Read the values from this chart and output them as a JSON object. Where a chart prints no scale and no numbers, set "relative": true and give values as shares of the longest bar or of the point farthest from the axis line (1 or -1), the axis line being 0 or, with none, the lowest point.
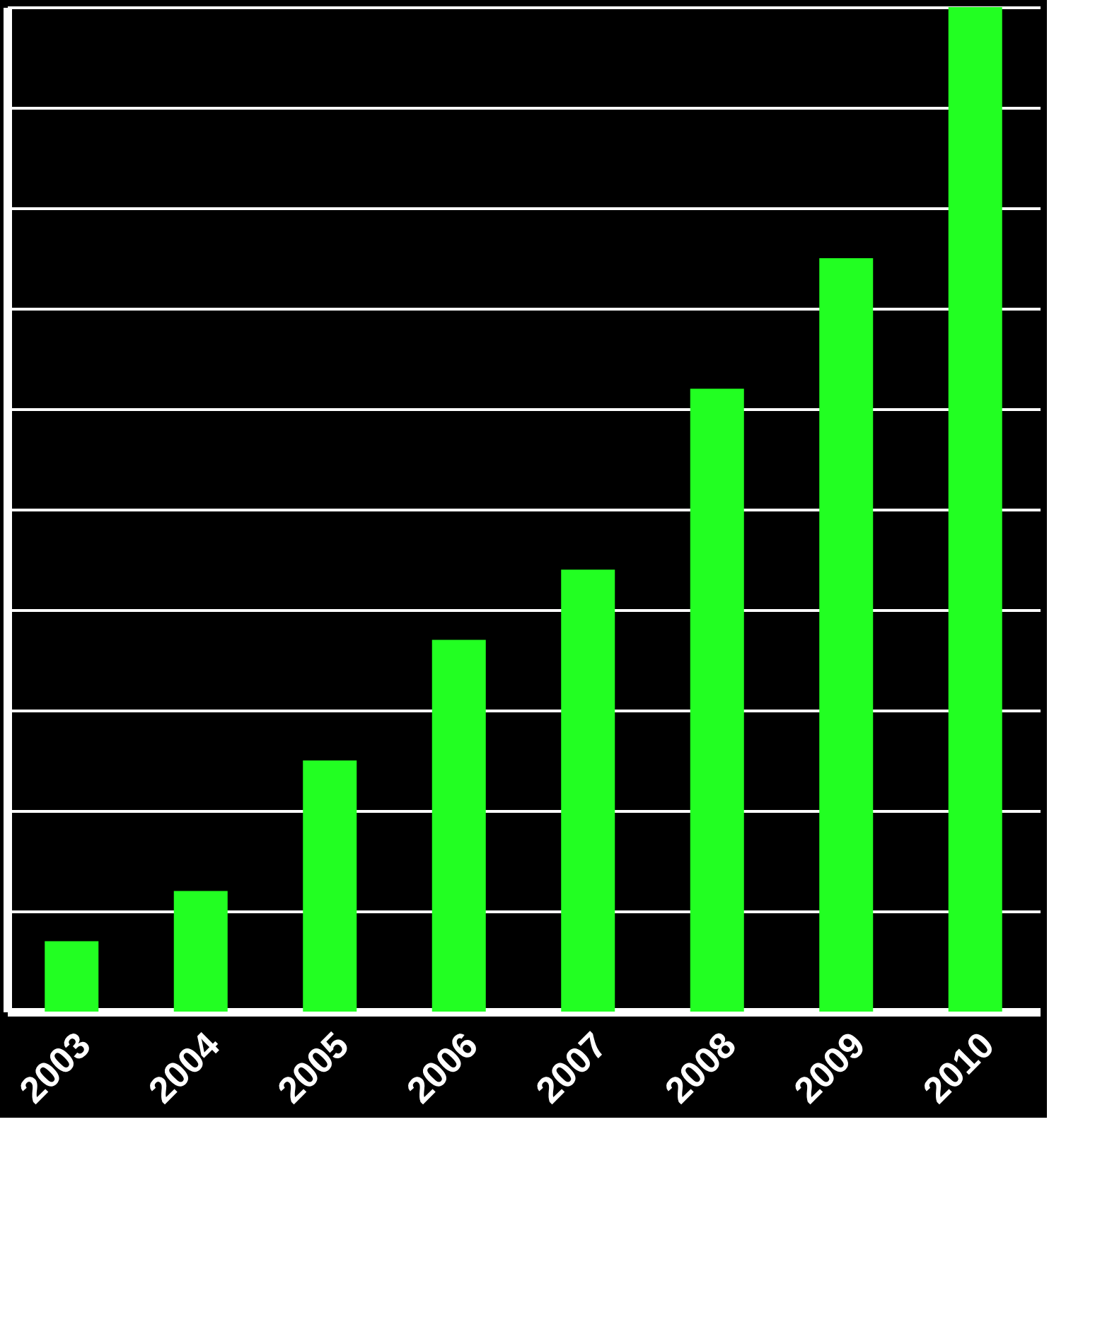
{
  "chart_data": {
    "type": "bar",
    "relative": true,
    "grid": "y",
    "categories": [
      "2003",
      "2004",
      "2005",
      "2006",
      "2007",
      "2008",
      "2009",
      "2010"
    ],
    "series": [
      {
        "color": "#22ff22",
        "values": [
          0.07,
          0.12,
          0.25,
          0.37,
          0.44,
          0.62,
          0.75,
          1
        ]
      }
    ]
  }
}
